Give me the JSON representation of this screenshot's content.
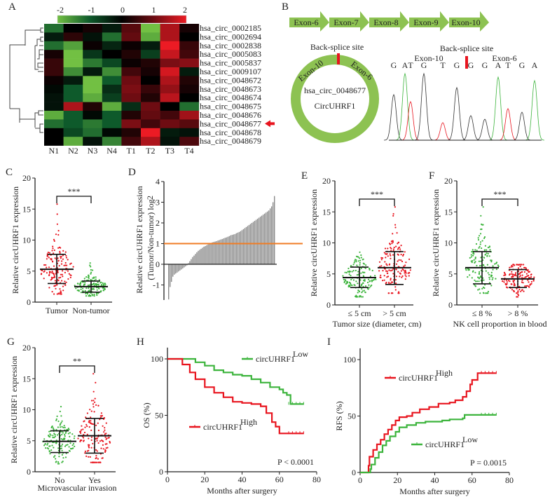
{
  "panel_letters": [
    "A",
    "B",
    "C",
    "D",
    "E",
    "F",
    "G",
    "H",
    "I"
  ],
  "chart_data": [
    {
      "panel": "A",
      "type": "heatmap",
      "columns": [
        "N1",
        "N2",
        "N3",
        "N4",
        "T1",
        "T2",
        "T3",
        "T4"
      ],
      "rows": [
        "hsa_circ_0002185",
        "hsa_circ_0002694",
        "hsa_circ_0002838",
        "hsa_circ_0005083",
        "hsa_circ_0005837",
        "hsa_circ_0009107",
        "hsa_circ_0048672",
        "hsa_circ_0048673",
        "hsa_circ_0048674",
        "hsa_circ_0048675",
        "hsa_circ_0048676",
        "hsa_circ_0048677",
        "hsa_circ_0048678",
        "hsa_circ_0048679"
      ],
      "values": [
        [
          -1.2,
          0.0,
          0.2,
          -0.3,
          0.8,
          -2.0,
          1.5,
          0.2
        ],
        [
          -0.3,
          0.4,
          -0.2,
          -1.2,
          0.9,
          -1.8,
          1.5,
          0.0
        ],
        [
          -1.2,
          -1.7,
          0.1,
          -0.4,
          0.1,
          -0.3,
          2.0,
          0.5
        ],
        [
          0.2,
          -2.0,
          -0.6,
          0.0,
          0.3,
          -0.7,
          1.7,
          0.6
        ],
        [
          0.5,
          -2.0,
          -1.3,
          -0.8,
          0.1,
          0.3,
          1.1,
          1.2
        ],
        [
          0.5,
          -1.5,
          -0.3,
          -1.5,
          0.6,
          0.2,
          1.8,
          -0.3
        ],
        [
          0.1,
          -0.3,
          -2.0,
          -1.0,
          1.0,
          0.0,
          1.5,
          0.3
        ],
        [
          -0.1,
          -1.0,
          -2.0,
          -0.5,
          1.1,
          0.5,
          1.3,
          0.2
        ],
        [
          -0.2,
          -1.0,
          -1.8,
          -0.7,
          1.0,
          0.3,
          1.6,
          0.0
        ],
        [
          -0.2,
          1.5,
          0.3,
          -1.8,
          -0.5,
          1.0,
          0.0,
          -1.2
        ],
        [
          -1.8,
          -1.0,
          -0.1,
          -1.0,
          0.3,
          0.9,
          0.6,
          1.4
        ],
        [
          -1.2,
          -1.0,
          -1.3,
          -1.0,
          1.1,
          0.6,
          1.0,
          0.8
        ],
        [
          0.0,
          -0.8,
          -1.2,
          -0.1,
          0.3,
          2.0,
          -0.3,
          -0.2
        ],
        [
          0.0,
          -1.8,
          -0.2,
          -1.4,
          0.6,
          1.5,
          -0.2,
          0.7
        ]
      ],
      "colorbar": {
        "ticks": [
          "-2",
          "-1",
          "0",
          "1",
          "2"
        ],
        "range": [
          -2,
          2
        ]
      },
      "colors": {
        "low": "#72c043",
        "low_mid": "#0e5a2b",
        "mid": "#000000",
        "high_mid": "#6e0c12",
        "high": "#ec1b24"
      },
      "highlight_row": "hsa_circ_0048677",
      "highlight_color": "#e8141e",
      "dendrogram": true
    },
    {
      "panel": "B",
      "type": "diagram",
      "exons": [
        "Exon-6",
        "Exon-7",
        "Exon-8",
        "Exon-9",
        "Exon-10"
      ],
      "exon_color": "#8dc252",
      "circle": {
        "back_splice_label": "Back-splice site",
        "left_exon": "Exon-10",
        "right_exon": "Exon-6",
        "id": "hsa_circ_0048677",
        "name": "CircUHRF1"
      },
      "chromatogram": {
        "back_splice_label": "Back-splice site",
        "left_exon": "Exon-10",
        "right_exon": "Exon-6",
        "bases": [
          "G",
          "A",
          "T",
          "G",
          "T",
          "G",
          "G",
          "G",
          "A",
          "T",
          "G",
          "A"
        ]
      },
      "marker_color": "#e8141e"
    },
    {
      "panel": "C",
      "type": "scatter",
      "ylabel": "Relative circUHRF1 expression",
      "xlabel": "",
      "ylim": [
        0,
        20
      ],
      "yticks": [
        "0",
        "5",
        "10",
        "15",
        "20"
      ],
      "significance": "***",
      "groups": [
        {
          "label": "Tumor",
          "color": "#e8141e",
          "mean": 5.3,
          "sd_low": 3.0,
          "sd_high": 7.7,
          "min": 1.3,
          "max": 15.8
        },
        {
          "label": "Non-tumor",
          "color": "#3cb43c",
          "mean": 2.5,
          "sd_low": 1.6,
          "sd_high": 3.4,
          "min": 1.0,
          "max": 6.3
        }
      ]
    },
    {
      "panel": "D",
      "type": "bar",
      "ylabel": "Relative circUHRF1 expression",
      "ylabel2": "(Tumor/Non-tumor) log",
      "ylabel2_sub": "2",
      "ylim": [
        -2,
        4
      ],
      "yticks": [
        "-1",
        "0",
        "1",
        "2",
        "3",
        "4"
      ],
      "reference_line": 1,
      "reference_color": "#f07c24",
      "bar_color": "#8a8a8a",
      "values": [
        -1.7,
        -1.1,
        -0.85,
        -0.6,
        -0.5,
        -0.45,
        -0.4,
        -0.35,
        -0.3,
        -0.25,
        -0.2,
        -0.15,
        -0.1,
        -0.05,
        0.05,
        0.15,
        0.25,
        0.35,
        0.42,
        0.5,
        0.58,
        0.65,
        0.7,
        0.75,
        0.8,
        0.85,
        0.88,
        0.92,
        0.96,
        1.0,
        1.03,
        1.06,
        1.08,
        1.1,
        1.12,
        1.15,
        1.17,
        1.2,
        1.22,
        1.25,
        1.28,
        1.3,
        1.33,
        1.36,
        1.4,
        1.42,
        1.44,
        1.46,
        1.5,
        1.53,
        1.56,
        1.6,
        1.65,
        1.7,
        1.75,
        1.8,
        1.85,
        1.9,
        1.95,
        2.0,
        2.05,
        2.1,
        2.15,
        2.2,
        2.25,
        2.3,
        2.35,
        2.4,
        2.45,
        2.5,
        2.55,
        2.6,
        2.7,
        2.8,
        3.0,
        3.3
      ]
    },
    {
      "panel": "E",
      "type": "scatter",
      "ylabel": "Relative circUHRF1 expression",
      "xlabel": "Tumor size (diameter, cm)",
      "ylim": [
        0,
        20
      ],
      "yticks": [
        "0",
        "5",
        "10",
        "15",
        "20"
      ],
      "significance": "***",
      "groups": [
        {
          "label": "≤ 5 cm",
          "color": "#3cb43c",
          "mean": 4.4,
          "sd_low": 2.8,
          "sd_high": 6.1,
          "min": 1.3,
          "max": 8.5
        },
        {
          "label": "> 5 cm",
          "color": "#e8141e",
          "mean": 6.0,
          "sd_low": 3.3,
          "sd_high": 8.6,
          "min": 1.9,
          "max": 15.8
        }
      ]
    },
    {
      "panel": "F",
      "type": "scatter",
      "ylabel": "Relative circUHRF1 expression",
      "xlabel": "NK cell proportion in blood",
      "ylim": [
        0,
        20
      ],
      "yticks": [
        "0",
        "5",
        "10",
        "15",
        "20"
      ],
      "significance": "***",
      "groups": [
        {
          "label": "≤ 8 %",
          "color": "#3cb43c",
          "mean": 6.0,
          "sd_low": 3.4,
          "sd_high": 8.6,
          "min": 1.9,
          "max": 15.8
        },
        {
          "label": "> 8 %",
          "color": "#e8141e",
          "mean": 4.2,
          "sd_low": 2.8,
          "sd_high": 5.7,
          "min": 1.3,
          "max": 6.5
        }
      ]
    },
    {
      "panel": "G",
      "type": "scatter",
      "ylabel": "Relative circUHRF1 expression",
      "xlabel": "Microvascular invasion",
      "ylim": [
        0,
        20
      ],
      "yticks": [
        "0",
        "5",
        "10",
        "15",
        "20"
      ],
      "significance": "**",
      "groups": [
        {
          "label": "No",
          "color": "#3cb43c",
          "mean": 4.9,
          "sd_low": 3.1,
          "sd_high": 6.6,
          "min": 1.3,
          "max": 10.5
        },
        {
          "label": "Yes",
          "color": "#e8141e",
          "mean": 5.8,
          "sd_low": 3.0,
          "sd_high": 8.6,
          "min": 1.5,
          "max": 15.8
        }
      ]
    },
    {
      "panel": "H",
      "type": "line",
      "ylabel": "OS (%)",
      "xlabel": "Months after surgery",
      "xlim": [
        0,
        80
      ],
      "ylim": [
        0,
        110
      ],
      "xticks": [
        "0",
        "20",
        "40",
        "60",
        "80"
      ],
      "yticks": [
        "0",
        "50",
        "100"
      ],
      "pvalue": "P < 0.0001",
      "series": [
        {
          "name": "circUHRF1",
          "sup": "Low",
          "color": "#3cb43c",
          "points": [
            [
              0,
              100
            ],
            [
              13,
              100
            ],
            [
              15,
              97
            ],
            [
              20,
              94
            ],
            [
              25,
              90
            ],
            [
              30,
              88
            ],
            [
              35,
              86
            ],
            [
              40,
              85
            ],
            [
              45,
              82
            ],
            [
              50,
              79
            ],
            [
              55,
              75
            ],
            [
              60,
              73
            ],
            [
              62,
              70
            ],
            [
              64,
              68
            ],
            [
              66,
              60
            ],
            [
              73,
              60
            ]
          ]
        },
        {
          "name": "circUHRF1",
          "sup": "High",
          "color": "#e8141e",
          "points": [
            [
              0,
              100
            ],
            [
              5,
              100
            ],
            [
              8,
              95
            ],
            [
              12,
              88
            ],
            [
              15,
              82
            ],
            [
              20,
              75
            ],
            [
              25,
              70
            ],
            [
              30,
              66
            ],
            [
              35,
              62
            ],
            [
              40,
              61
            ],
            [
              45,
              60
            ],
            [
              50,
              58
            ],
            [
              53,
              52
            ],
            [
              56,
              44
            ],
            [
              58,
              40
            ],
            [
              60,
              34
            ],
            [
              73,
              34
            ]
          ]
        }
      ]
    },
    {
      "panel": "I",
      "type": "line",
      "ylabel": "RFS (%)",
      "xlabel": "Months after surgery",
      "xlim": [
        0,
        80
      ],
      "ylim": [
        0,
        110
      ],
      "xticks": [
        "0",
        "20",
        "40",
        "60",
        "80"
      ],
      "yticks": [
        "0",
        "50",
        "100"
      ],
      "pvalue": "P = 0.0015",
      "series": [
        {
          "name": "circUHRF1",
          "sup": "High",
          "color": "#e8141e",
          "points": [
            [
              0,
              0
            ],
            [
              4,
              0
            ],
            [
              4.5,
              6
            ],
            [
              5,
              14
            ],
            [
              7,
              20
            ],
            [
              9,
              25
            ],
            [
              11,
              29
            ],
            [
              13,
              34
            ],
            [
              15,
              38
            ],
            [
              17,
              42
            ],
            [
              19,
              46
            ],
            [
              21,
              49
            ],
            [
              25,
              50
            ],
            [
              28,
              53
            ],
            [
              32,
              56
            ],
            [
              37,
              58
            ],
            [
              42,
              61
            ],
            [
              48,
              62
            ],
            [
              51,
              64
            ],
            [
              55,
              67
            ],
            [
              57,
              72
            ],
            [
              59,
              78
            ],
            [
              60,
              82
            ],
            [
              63,
              88
            ],
            [
              73,
              88
            ]
          ]
        },
        {
          "name": "circUHRF1",
          "sup": "Low",
          "color": "#3cb43c",
          "points": [
            [
              0,
              0
            ],
            [
              5,
              0
            ],
            [
              5.5,
              3
            ],
            [
              6,
              7
            ],
            [
              8,
              13
            ],
            [
              10,
              18
            ],
            [
              12,
              24
            ],
            [
              14,
              28
            ],
            [
              16,
              32
            ],
            [
              19,
              36
            ],
            [
              21,
              40
            ],
            [
              25,
              42
            ],
            [
              30,
              44
            ],
            [
              35,
              45
            ],
            [
              44,
              46
            ],
            [
              48,
              47
            ],
            [
              55,
              48
            ],
            [
              56,
              51
            ],
            [
              73,
              51
            ]
          ]
        }
      ]
    }
  ]
}
